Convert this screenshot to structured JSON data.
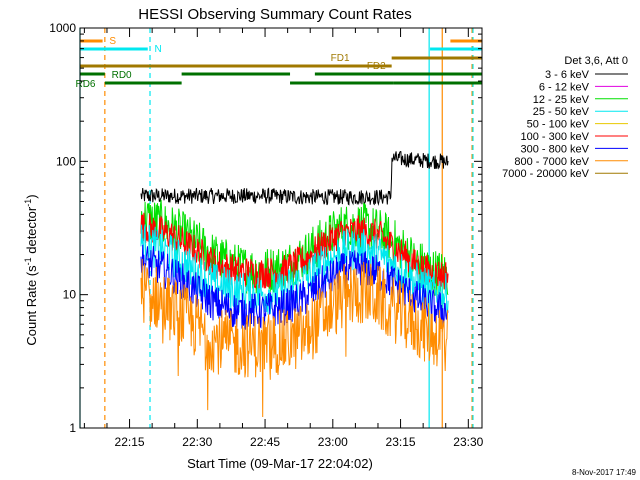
{
  "chart_data": {
    "type": "line",
    "title": "HESSI Observing Summary Count Rates",
    "xlabel": "Start Time (09-Mar-17 22:04:02)",
    "ylabel_main": "Count Rate (s",
    "ylabel_sup": "-1",
    "ylabel_mid": " detector",
    "ylabel_sup2": "-1",
    "ylabel_end": ")",
    "footer": "8-Nov-2017 17:49",
    "y_scale": "log",
    "ylim": [
      1,
      1000
    ],
    "xlim_minutes": [
      0,
      89
    ],
    "xtick_labels": [
      {
        "label": "22:15",
        "min": 10.97
      },
      {
        "label": "22:30",
        "min": 25.97
      },
      {
        "label": "22:45",
        "min": 40.97
      },
      {
        "label": "23:00",
        "min": 55.97
      },
      {
        "label": "23:15",
        "min": 70.97
      },
      {
        "label": "23:30",
        "min": 85.97
      }
    ],
    "ytick_labels": [
      {
        "label": "1",
        "value": 1
      },
      {
        "label": "10",
        "value": 10
      },
      {
        "label": "100",
        "value": 100
      },
      {
        "label": "1000",
        "value": 1000
      }
    ],
    "legend_header": "Det 3,6, Att 0",
    "legend": [
      {
        "name": "3 - 6 keV",
        "color": "#000000"
      },
      {
        "name": "6 - 12 keV",
        "color": "#e000e0"
      },
      {
        "name": "12 - 25 keV",
        "color": "#00e000"
      },
      {
        "name": "25 - 50 keV",
        "color": "#00e8f0"
      },
      {
        "name": "50 - 100 keV",
        "color": "#e8c800"
      },
      {
        "name": "100 - 300 keV",
        "color": "#ff0000"
      },
      {
        "name": "300 - 800 keV",
        "color": "#0000ff"
      },
      {
        "name": "800 - 7000 keV",
        "color": "#ff8c00"
      },
      {
        "name": "7000 - 20000 keV",
        "color": "#a07800"
      }
    ],
    "series": [
      {
        "name": "3 - 6 keV",
        "color": "#000000",
        "x": [
          13.5,
          20,
          30,
          40,
          50,
          60,
          68.9,
          69,
          75,
          79.9,
          81.5
        ],
        "y": [
          55,
          55,
          55,
          55,
          54,
          54,
          54,
          105,
          102,
          100,
          98
        ]
      },
      {
        "name": "12 - 25 keV",
        "color": "#00e000",
        "x": [
          13.5,
          16,
          20,
          25,
          30,
          35,
          40,
          45,
          50,
          55,
          58,
          62,
          66,
          70,
          74,
          78,
          81.5
        ],
        "y": [
          38,
          36,
          32,
          25,
          19,
          16,
          15,
          16,
          20,
          27,
          32,
          33,
          30,
          24,
          18,
          15,
          14
        ]
      },
      {
        "name": "100 - 300 keV",
        "color": "#ff0000",
        "x": [
          13.5,
          16,
          20,
          25,
          30,
          35,
          40,
          45,
          50,
          55,
          58,
          62,
          66,
          70,
          74,
          78,
          81.5
        ],
        "y": [
          33,
          31,
          28,
          22,
          17,
          15,
          14.5,
          15,
          18.5,
          25,
          29,
          30,
          28,
          22,
          17,
          14.5,
          14
        ]
      },
      {
        "name": "25 - 50 keV",
        "color": "#00e8f0",
        "x": [
          13.5,
          16,
          20,
          25,
          30,
          35,
          40,
          45,
          50,
          55,
          58,
          62,
          66,
          70,
          74,
          78,
          81.5
        ],
        "y": [
          25,
          23,
          20,
          15,
          12,
          10.5,
          10,
          10.5,
          13,
          18,
          21,
          22,
          20,
          16,
          12.5,
          10.5,
          10
        ]
      },
      {
        "name": "300 - 800 keV",
        "color": "#0000ff",
        "x": [
          13.5,
          16,
          20,
          25,
          30,
          35,
          40,
          45,
          50,
          55,
          58,
          62,
          66,
          70,
          74,
          78,
          81.5
        ],
        "y": [
          18,
          17,
          14.5,
          11,
          8.5,
          7.5,
          7.5,
          8,
          9.5,
          13,
          15,
          16,
          14.5,
          12,
          9.5,
          8,
          7.5
        ]
      },
      {
        "name": "800 - 7000 keV",
        "color": "#ff8c00",
        "x": [
          13.5,
          16,
          20,
          25,
          30,
          35,
          40,
          45,
          50,
          55,
          58,
          62,
          66,
          70,
          74,
          78,
          81.5
        ],
        "y": [
          11,
          10,
          8,
          6,
          4.5,
          4.2,
          4.2,
          4.4,
          5,
          7.5,
          9.5,
          10.5,
          9.5,
          7.5,
          6,
          5,
          5
        ]
      }
    ],
    "flags": {
      "S_label": "S",
      "N_label": "N",
      "FD1_label": "FD1",
      "FD2_label": "FD2",
      "RD0_label": "RD0",
      "RD6_label": "RD6",
      "S_segments": [
        [
          0,
          5
        ],
        [
          82,
          89
        ]
      ],
      "N_segments": [
        [
          0,
          15
        ],
        [
          77.5,
          89
        ]
      ],
      "FD1_segment": [
        0,
        69
      ],
      "FD2_segment": [
        69,
        89
      ],
      "RD0_segments": [
        [
          0,
          5.5
        ],
        [
          22.5,
          46.5
        ],
        [
          52,
          89
        ]
      ],
      "RD6_segments": [
        [
          5.5,
          22.5
        ],
        [
          46.5,
          69.5
        ],
        [
          69.5,
          89
        ]
      ]
    },
    "vlines": [
      {
        "min": 0,
        "color": "#00e8f0",
        "style": "solid"
      },
      {
        "min": 5.5,
        "color": "#ff8c00",
        "style": "dashed"
      },
      {
        "min": 15.5,
        "color": "#00e8f0",
        "style": "dashed"
      },
      {
        "min": 77.3,
        "color": "#00e8f0",
        "style": "solid"
      },
      {
        "min": 80.2,
        "color": "#ff8c00",
        "style": "solid"
      },
      {
        "min": 86.8,
        "color": "#ff8c00",
        "style": "dashed"
      },
      {
        "min": 87.0,
        "color": "#00e8f0",
        "style": "dashed"
      }
    ],
    "grid": false,
    "legend_position": "right"
  }
}
